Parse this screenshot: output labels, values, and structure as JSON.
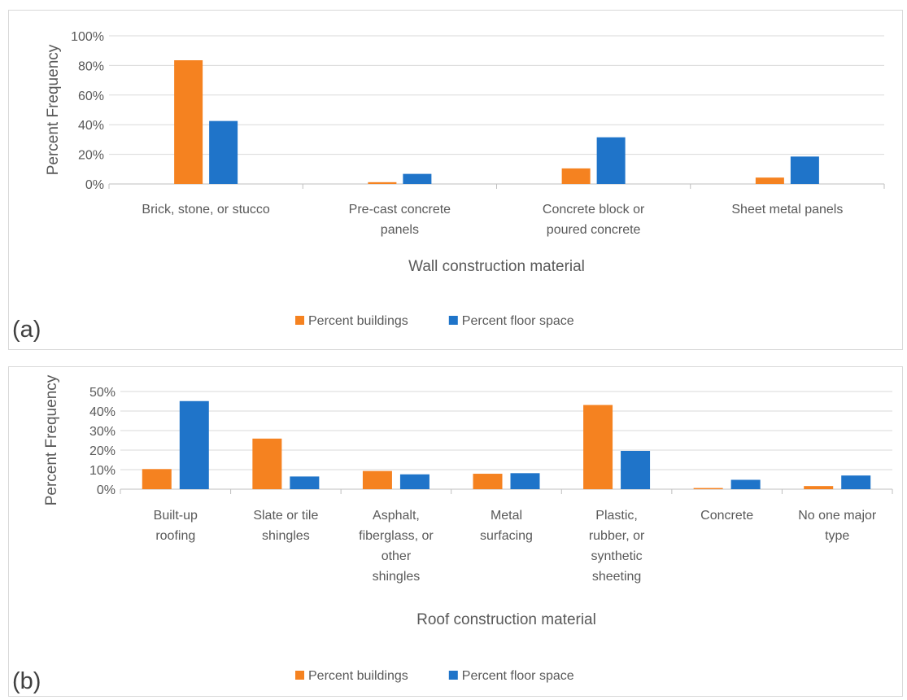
{
  "chart_data": [
    {
      "type": "bar",
      "panel_label": "(a)",
      "title": "",
      "xlabel": "Wall construction material",
      "ylabel": "Percent Frequency",
      "ylim": [
        0,
        100
      ],
      "yticks": [
        0,
        20,
        40,
        60,
        80,
        100
      ],
      "ytick_labels": [
        "0%",
        "20%",
        "40%",
        "60%",
        "80%",
        "100%"
      ],
      "categories": [
        [
          "Brick, stone, or stucco"
        ],
        [
          "Pre-cast concrete",
          "panels"
        ],
        [
          "Concrete block or",
          "poured concrete"
        ],
        [
          "Sheet metal panels"
        ]
      ],
      "series": [
        {
          "name": "Percent buildings",
          "color": "#f58220",
          "values": [
            83.5,
            1.2,
            10.5,
            4.3
          ]
        },
        {
          "name": "Percent floor space",
          "color": "#1f74c9",
          "values": [
            42.5,
            6.8,
            31.5,
            18.5
          ]
        }
      ],
      "grid": true,
      "legend": "bottom"
    },
    {
      "type": "bar",
      "panel_label": "(b)",
      "title": "",
      "xlabel": "Roof construction material",
      "ylabel": "Percent Frequency",
      "ylim": [
        0,
        50
      ],
      "yticks": [
        0,
        10,
        20,
        30,
        40,
        50
      ],
      "ytick_labels": [
        "0%",
        "10%",
        "20%",
        "30%",
        "40%",
        "50%"
      ],
      "categories": [
        [
          "Built-up",
          "roofing"
        ],
        [
          "Slate or tile",
          "shingles"
        ],
        [
          "Asphalt,",
          "fiberglass, or",
          "other",
          "shingles"
        ],
        [
          "Metal",
          "surfacing"
        ],
        [
          "Plastic,",
          "rubber, or",
          "synthetic",
          "sheeting"
        ],
        [
          "Concrete"
        ],
        [
          "No one major",
          "type"
        ]
      ],
      "series": [
        {
          "name": "Percent buildings",
          "color": "#f58220",
          "values": [
            10.3,
            25.9,
            9.3,
            7.9,
            43.1,
            0.6,
            1.6
          ]
        },
        {
          "name": "Percent floor space",
          "color": "#1f74c9",
          "values": [
            45.1,
            6.5,
            7.6,
            8.2,
            19.6,
            4.8,
            7.0
          ]
        }
      ],
      "grid": true,
      "legend": "bottom"
    }
  ]
}
